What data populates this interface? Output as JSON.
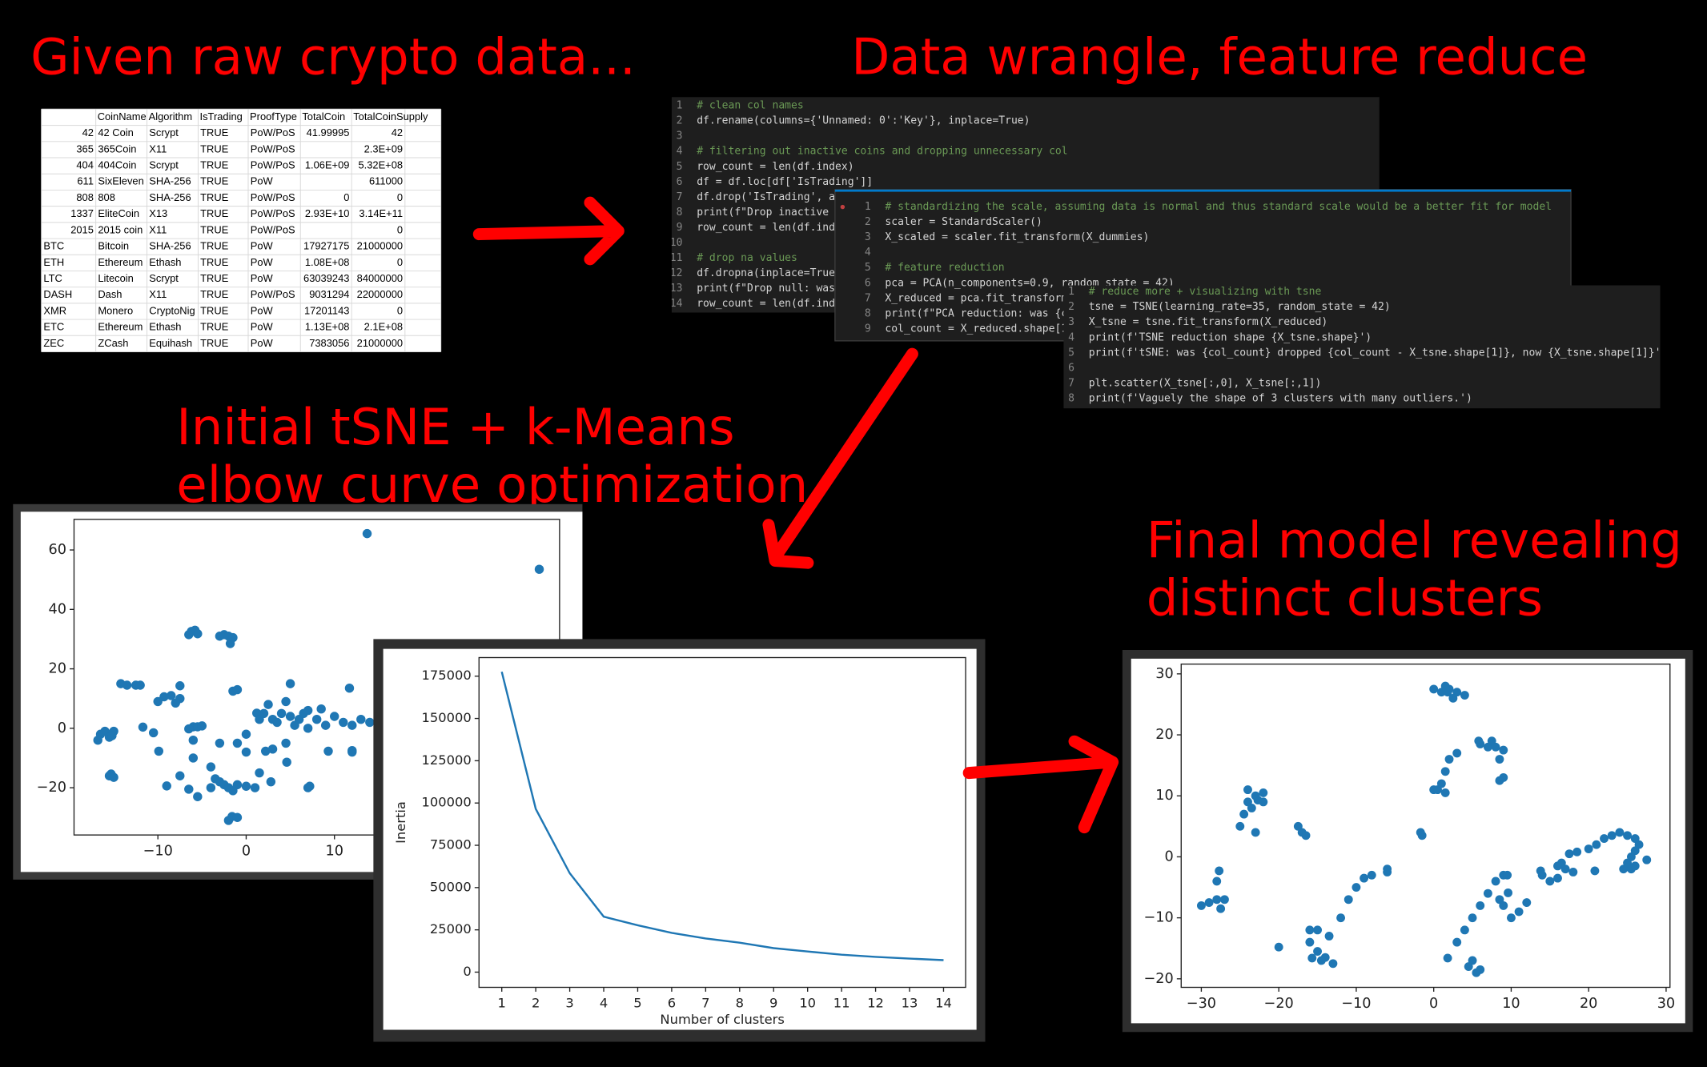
{
  "headings": [
    {
      "lines": [
        "Given raw crypto data..."
      ]
    },
    {
      "lines": [
        "Data wrangle, feature reduce"
      ]
    },
    {
      "lines": [
        "Initial tSNE + k-Means",
        "elbow curve optimization"
      ]
    },
    {
      "lines": [
        "Final model revealing",
        "distinct clusters"
      ]
    }
  ],
  "table": {
    "header": [
      "CoinName",
      "Algorithm",
      "IsTrading",
      "ProofType",
      "TotalCoin",
      "TotalCoinSupply"
    ],
    "rows": [
      [
        "42",
        "42 Coin",
        "Scrypt",
        "TRUE",
        "PoW/PoS",
        "41.99995",
        "42"
      ],
      [
        "365",
        "365Coin",
        "X11",
        "TRUE",
        "PoW/PoS",
        null,
        "2.3E+09"
      ],
      [
        "404",
        "404Coin",
        "Scrypt",
        "TRUE",
        "PoW/PoS",
        "1.06E+09",
        "5.32E+08"
      ],
      [
        "611",
        "SixEleven",
        "SHA-256",
        "TRUE",
        "PoW",
        null,
        "611000"
      ],
      [
        "808",
        "808",
        "SHA-256",
        "TRUE",
        "PoW/PoS",
        "0",
        "0"
      ],
      [
        "1337",
        "EliteCoin",
        "X13",
        "TRUE",
        "PoW/PoS",
        "2.93E+10",
        "3.14E+11"
      ],
      [
        "2015",
        "2015 coin",
        "X11",
        "TRUE",
        "PoW/PoS",
        null,
        "0"
      ],
      [
        "BTC",
        "Bitcoin",
        "SHA-256",
        "TRUE",
        "PoW",
        "17927175",
        "21000000"
      ],
      [
        "ETH",
        "Ethereum",
        "Ethash",
        "TRUE",
        "PoW",
        "1.08E+08",
        "0"
      ],
      [
        "LTC",
        "Litecoin",
        "Scrypt",
        "TRUE",
        "PoW",
        "63039243",
        "84000000"
      ],
      [
        "DASH",
        "Dash",
        "X11",
        "TRUE",
        "PoW/PoS",
        "9031294",
        "22000000"
      ],
      [
        "XMR",
        "Monero",
        "CryptoNig",
        "TRUE",
        "PoW",
        "17201143",
        "0"
      ],
      [
        "ETC",
        "Ethereum",
        "Ethash",
        "TRUE",
        "PoW",
        "1.13E+08",
        "2.1E+08"
      ],
      [
        "ZEC",
        "ZCash",
        "Equihash",
        "TRUE",
        "PoW",
        "7383056",
        "21000000"
      ]
    ]
  },
  "code": [
    {
      "lines": [
        {
          "number": 1,
          "text": "# clean col names"
        },
        {
          "number": 2,
          "text": "df.rename(columns={'Unnamed: 0':'Key'}, inplace=True)"
        },
        {
          "number": 3
        },
        {
          "number": 4,
          "text": "# filtering out inactive coins and dropping unnecessary col"
        },
        {
          "number": 5,
          "text": "row_count = len(df.index)"
        },
        {
          "number": 6,
          "text": "df = df.loc[df['IsTrading']]"
        },
        {
          "number": 7,
          "text": "df.drop('IsTrading', a"
        },
        {
          "number": 8,
          "text": "print(f\"Drop inactive"
        },
        {
          "number": 9,
          "text": "row_count = len(df.ind"
        },
        {
          "number": 10
        },
        {
          "number": 11,
          "text": "# drop na values"
        },
        {
          "number": 12,
          "text": "df.dropna(inplace=True"
        },
        {
          "number": 13,
          "text": "print(f\"Drop null: was"
        },
        {
          "number": 14,
          "text": "row_count = len(df.ind"
        }
      ]
    },
    {
      "lines": [
        {
          "number": 1,
          "text": "# standardizing the scale, assuming data is normal and thus standard scale would be a better fit for model"
        },
        {
          "number": 2,
          "text": "scaler = StandardScaler()"
        },
        {
          "number": 3,
          "text": "X_scaled = scaler.fit_transform(X_dummies)"
        },
        {
          "number": 4
        },
        {
          "number": 5,
          "text": "# feature reduction"
        },
        {
          "number": 6,
          "text": "pca = PCA(n_components=0.9, random_state = 42)"
        },
        {
          "number": 7,
          "text": "X_reduced = pca.fit_transform("
        },
        {
          "number": 8,
          "text": "print(f\"PCA reduction: was {co"
        },
        {
          "number": 9,
          "text": "col_count = X_reduced.shape[1]"
        }
      ]
    },
    {
      "lines": [
        {
          "number": 1,
          "text": "# reduce more + visualizing with tsne"
        },
        {
          "number": 2,
          "text": "tsne = TSNE(learning_rate=35, random_state = 42)"
        },
        {
          "number": 3,
          "text": "X_tsne = tsne.fit_transform(X_reduced)"
        },
        {
          "number": 4,
          "text": "print(f'TSNE reduction shape {X_tsne.shape}')"
        },
        {
          "number": 5,
          "text": "print(f'tSNE: was {col_count} dropped {col_count - X_tsne.shape[1]}, now {X_tsne.shape[1]}')"
        },
        {
          "number": 6
        },
        {
          "number": 7,
          "text": "plt.scatter(X_tsne[:,0], X_tsne[:,1])"
        },
        {
          "number": 8,
          "text": "print(f'Vaguely the shape of 3 clusters with many outliers.')"
        }
      ]
    }
  ],
  "chart_data": [
    {
      "type": "scatter",
      "color": "#1f77b4",
      "x": [
        13.7,
        33.2,
        -16.5,
        -16,
        -15.5,
        -15,
        -16.8,
        -15.2,
        -15.3,
        -15.5,
        -15,
        -14.2,
        -13.5,
        -12.5,
        -12,
        -6.2,
        -5.8,
        -6.5,
        -5.5,
        -3,
        -2.5,
        -2,
        -1.5,
        -1.8,
        -6,
        -5.5,
        -6.5,
        -5,
        -9.3,
        -8.5,
        -7.5,
        -8,
        -10,
        -7.5,
        -11.7,
        -10.5,
        -9.9,
        -9,
        -7.5,
        -6.5,
        -5.5,
        -3.5,
        -3,
        -2.5,
        -2,
        -1,
        0,
        -1.5,
        -4,
        1,
        -1.6,
        -1,
        -2,
        -1.5,
        -1,
        1.2,
        1.5,
        2,
        3,
        4,
        3.5,
        5,
        5.5,
        6,
        6.5,
        7,
        8,
        9,
        10,
        11,
        12,
        13,
        14,
        7,
        8.5,
        4.5,
        2.5,
        5,
        2.2,
        3,
        4.5,
        2.8,
        1.5,
        4.6,
        7,
        7.2,
        9.3,
        12,
        12,
        11.7,
        -6,
        -3,
        0,
        -1,
        0,
        -6,
        -4
      ],
      "values": [
        65.5,
        53.5,
        -2,
        -1,
        -3,
        -1,
        -4,
        -2.5,
        -15.4,
        -16,
        -16.5,
        15,
        14.5,
        14.5,
        14.5,
        32.6,
        33,
        31.5,
        31.8,
        31,
        31.5,
        31,
        30.5,
        28.5,
        0.5,
        0.5,
        -0.2,
        0.8,
        10.6,
        11,
        10,
        8.5,
        9,
        14.3,
        0.4,
        -1.5,
        -7.7,
        -19.4,
        -16,
        -20.5,
        -23,
        -17,
        -18,
        -19,
        -20,
        -19,
        -19.5,
        -21,
        -20,
        -20,
        -29.7,
        -30,
        -31,
        12.5,
        13,
        5.1,
        3,
        5,
        3,
        5,
        2,
        4,
        1,
        3,
        5,
        0,
        3,
        1,
        4,
        2,
        1,
        3,
        2,
        6,
        6.5,
        9,
        8,
        15,
        -7.7,
        -7,
        -5,
        -18,
        -15,
        -11.4,
        -20,
        -19.5,
        -7.7,
        -7.5,
        -8,
        13.5,
        -4,
        -5,
        -8,
        -5,
        -2,
        -10,
        -13
      ],
      "xlim": [
        -19.5,
        35.5
      ],
      "ylim": [
        -35.9,
        70.3
      ],
      "xticks": [
        {
          "value": -10,
          "label": "−10"
        },
        0,
        10
      ],
      "yticks": [
        {
          "value": -20,
          "label": "−20"
        },
        0,
        20,
        40,
        60
      ]
    },
    {
      "type": "line",
      "color": "#1f77b4",
      "x": [
        1,
        2,
        3,
        4,
        5,
        6,
        7,
        8,
        9,
        10,
        11,
        12,
        13,
        14
      ],
      "values": [
        177600,
        96500,
        58500,
        32800,
        27700,
        23200,
        19900,
        17400,
        14200,
        12200,
        10300,
        9000,
        8000,
        7100
      ],
      "xlim": [
        0.33,
        14.65
      ],
      "ylim": [
        -9000,
        186000
      ],
      "xticks": [
        1,
        2,
        3,
        4,
        5,
        6,
        7,
        8,
        9,
        10,
        11,
        12,
        13,
        14
      ],
      "yticks": [
        0,
        25000,
        50000,
        75000,
        100000,
        125000,
        150000,
        175000
      ],
      "xlabel": "Number of clusters",
      "ylabel": "Inertia"
    },
    {
      "type": "scatter",
      "color": "#1f77b4",
      "x": [
        0,
        1,
        2,
        3,
        4,
        2.5,
        1.5,
        1.8,
        5.8,
        6,
        7,
        8,
        9,
        8.5,
        9,
        8.5,
        7.5,
        0,
        0.5,
        1,
        1.5,
        2,
        3,
        1.5,
        -1.7,
        -1.5,
        -22.7,
        -24,
        -23,
        -22,
        -23.5,
        -24.5,
        -25,
        -23,
        -22,
        -24,
        -17,
        -17.5,
        -16.5,
        -27.7,
        -28,
        -28,
        -29,
        -27,
        -30,
        -27.5,
        -20,
        -15.7,
        -16,
        -15,
        -16,
        -15,
        -14,
        -13,
        -14.5,
        -13.5,
        -12,
        -11,
        -10,
        -9,
        -8,
        -6,
        -6,
        1.8,
        3,
        4,
        5,
        6,
        7,
        8,
        9,
        5,
        6,
        5.5,
        4.5,
        9.6,
        8.5,
        9,
        10,
        11,
        12,
        9.5,
        13.8,
        14,
        15,
        16,
        17,
        16.5,
        18,
        17.5,
        18.5,
        16,
        20.8,
        20,
        21,
        22,
        23,
        24,
        25,
        26,
        26.5,
        26,
        25.5,
        25,
        25.5,
        26,
        27.5,
        24.5
      ],
      "values": [
        27.5,
        27,
        27.5,
        27,
        26.5,
        26,
        28,
        27,
        19,
        18.5,
        18,
        18,
        17.5,
        16,
        13,
        12.5,
        19,
        11,
        11,
        12,
        14,
        16,
        17,
        10.5,
        4,
        3.5,
        9.3,
        11,
        10,
        9,
        8,
        7,
        5,
        4,
        10.5,
        9,
        4,
        5,
        3.5,
        -2.3,
        -4,
        -7,
        -7.5,
        -7,
        -8,
        -8.5,
        -14.8,
        -16.6,
        -12,
        -12,
        -14,
        -15.5,
        -16.5,
        -17.5,
        -17,
        -13,
        -10,
        -7,
        -5,
        -3.5,
        -3,
        -2,
        -2.5,
        -16.6,
        -14,
        -12,
        -10,
        -8,
        -6,
        -4,
        -3,
        -17,
        -18.5,
        -19,
        -18,
        -5.9,
        -7,
        -8,
        -10,
        -9,
        -7.5,
        -3,
        -2.3,
        -3,
        -4,
        -3.5,
        -2,
        -1,
        -2.5,
        0.5,
        0.8,
        -1.5,
        -2.3,
        1.3,
        2,
        3,
        3.5,
        4,
        3.5,
        3,
        2,
        1,
        0,
        -1,
        -2,
        -1.5,
        -0.5,
        -2
      ],
      "xlim": [
        -32.6,
        30.5
      ],
      "ylim": [
        -21.4,
        31.6
      ],
      "xticks": [
        {
          "value": -30,
          "label": "−30"
        },
        {
          "value": -20,
          "label": "−20"
        },
        {
          "value": -10,
          "label": "−10"
        },
        0,
        10,
        20,
        30
      ],
      "yticks": [
        {
          "value": -20,
          "label": "−20"
        },
        {
          "value": -10,
          "label": "−10"
        },
        0,
        10,
        20,
        30
      ]
    }
  ]
}
